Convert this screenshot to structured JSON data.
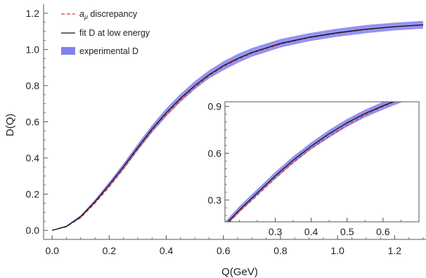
{
  "chart_data": [
    {
      "type": "line",
      "xlabel": "Q(GeV)",
      "ylabel": "D(Q)",
      "xlim": [
        -0.03,
        1.31
      ],
      "ylim": [
        -0.05,
        1.25
      ],
      "x_ticks": [
        "0.0",
        "0.2",
        "0.4",
        "0.6",
        "0.8",
        "1.0",
        "1.2"
      ],
      "y_ticks": [
        "0.0",
        "0.2",
        "0.4",
        "0.6",
        "0.8",
        "1.0",
        "1.2"
      ],
      "legend_position": "top-left",
      "grid": false,
      "series": [
        {
          "name": "a_μ discrepancy",
          "legend_main": "a",
          "legend_sub": "μ",
          "legend_rest": " discrepancy",
          "style": "dashed",
          "color": "#e8312f",
          "x": [
            0.0,
            0.05,
            0.1,
            0.15,
            0.2,
            0.25,
            0.3,
            0.35,
            0.4,
            0.45,
            0.5,
            0.55,
            0.6,
            0.65,
            0.7,
            0.8,
            0.9,
            1.0,
            1.1,
            1.2,
            1.3
          ],
          "y": [
            0.0,
            0.02,
            0.07,
            0.15,
            0.24,
            0.34,
            0.45,
            0.55,
            0.64,
            0.72,
            0.79,
            0.855,
            0.905,
            0.945,
            0.98,
            1.03,
            1.065,
            1.09,
            1.11,
            1.125,
            1.135
          ]
        },
        {
          "name": "fit D at low energy",
          "style": "solid",
          "color": "#111111",
          "x": [
            0.0,
            0.05,
            0.1,
            0.15,
            0.2,
            0.25,
            0.3,
            0.35,
            0.4,
            0.45,
            0.5,
            0.55,
            0.6,
            0.65,
            0.7,
            0.8,
            0.9,
            1.0,
            1.1,
            1.2,
            1.3
          ],
          "y": [
            0.0,
            0.022,
            0.075,
            0.158,
            0.252,
            0.352,
            0.458,
            0.56,
            0.65,
            0.73,
            0.8,
            0.86,
            0.91,
            0.95,
            0.983,
            1.033,
            1.067,
            1.092,
            1.112,
            1.126,
            1.136
          ]
        },
        {
          "name": "experimental D",
          "style": "band",
          "color": "#8080f0",
          "x": [
            0.0,
            0.05,
            0.1,
            0.15,
            0.2,
            0.25,
            0.3,
            0.35,
            0.4,
            0.45,
            0.5,
            0.55,
            0.6,
            0.65,
            0.7,
            0.8,
            0.9,
            1.0,
            1.1,
            1.2,
            1.3
          ],
          "lower": [
            0.0,
            0.018,
            0.07,
            0.15,
            0.24,
            0.335,
            0.44,
            0.54,
            0.63,
            0.71,
            0.78,
            0.84,
            0.885,
            0.925,
            0.96,
            1.01,
            1.045,
            1.07,
            1.09,
            1.105,
            1.115
          ],
          "upper": [
            0.0,
            0.026,
            0.085,
            0.17,
            0.268,
            0.37,
            0.478,
            0.582,
            0.675,
            0.755,
            0.825,
            0.885,
            0.935,
            0.975,
            1.008,
            1.058,
            1.09,
            1.115,
            1.135,
            1.148,
            1.158
          ]
        }
      ]
    },
    {
      "type": "line",
      "role": "inset",
      "xlim": [
        0.16,
        0.7
      ],
      "ylim": [
        0.16,
        0.93
      ],
      "x_ticks": [
        "0.3",
        "0.4",
        "0.5",
        "0.6"
      ],
      "y_ticks": [
        "0.3",
        "0.6",
        "0.9"
      ],
      "series": [
        {
          "name": "a_μ discrepancy",
          "style": "dashed",
          "color": "#e8312f",
          "x": [
            0.16,
            0.2,
            0.25,
            0.3,
            0.35,
            0.4,
            0.45,
            0.5,
            0.55,
            0.6,
            0.65,
            0.7
          ],
          "y": [
            0.13,
            0.225,
            0.33,
            0.44,
            0.54,
            0.63,
            0.71,
            0.78,
            0.845,
            0.9,
            0.945,
            0.985
          ]
        },
        {
          "name": "fit D at low energy",
          "style": "solid",
          "color": "#111111",
          "x": [
            0.16,
            0.2,
            0.25,
            0.3,
            0.35,
            0.4,
            0.45,
            0.5,
            0.55,
            0.6,
            0.65,
            0.7
          ],
          "y": [
            0.14,
            0.235,
            0.345,
            0.455,
            0.555,
            0.645,
            0.725,
            0.795,
            0.855,
            0.905,
            0.95,
            0.99
          ]
        },
        {
          "name": "experimental D",
          "style": "band",
          "color": "#8080f0",
          "x": [
            0.16,
            0.2,
            0.25,
            0.3,
            0.35,
            0.4,
            0.45,
            0.5,
            0.55,
            0.6,
            0.65,
            0.7
          ],
          "lower": [
            0.125,
            0.22,
            0.33,
            0.435,
            0.535,
            0.625,
            0.7,
            0.77,
            0.83,
            0.88,
            0.925,
            0.965
          ],
          "upper": [
            0.16,
            0.26,
            0.37,
            0.48,
            0.58,
            0.67,
            0.75,
            0.82,
            0.88,
            0.93,
            0.975,
            1.015
          ]
        }
      ]
    }
  ]
}
